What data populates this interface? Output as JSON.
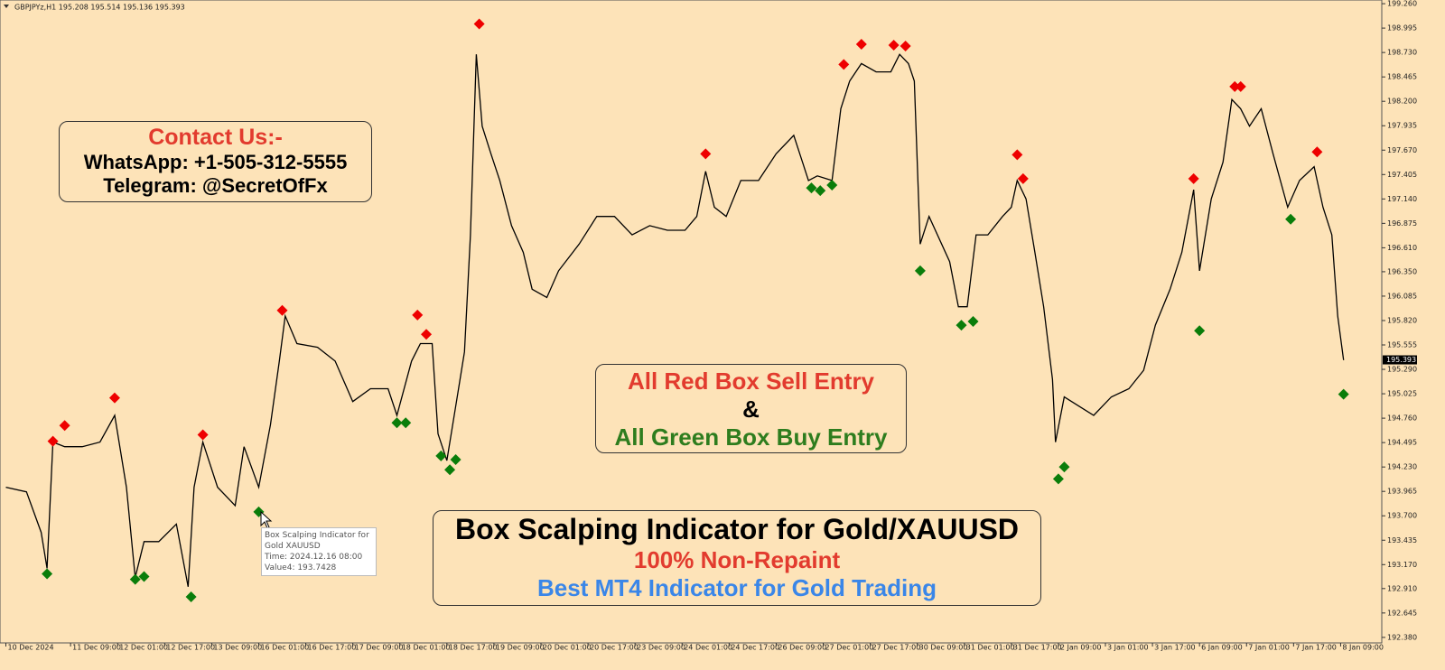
{
  "chart_data": {
    "type": "line",
    "header": "GBPJPYz,H1  195.208 195.514 195.136 195.393",
    "color": "#000000",
    "x": [
      0,
      7,
      12,
      14,
      16,
      20,
      26,
      32,
      37,
      41,
      44,
      47,
      52,
      58,
      62,
      64,
      67,
      72,
      78,
      81,
      86,
      90,
      93,
      95,
      99,
      106,
      112,
      118,
      124,
      130,
      133,
      138,
      141,
      145,
      147,
      150,
      153,
      156,
      158,
      160,
      162,
      165,
      168,
      172,
      176,
      179,
      184,
      188,
      195,
      201,
      207,
      213,
      219,
      225,
      231,
      235,
      238,
      241,
      245,
      250,
      256,
      262,
      268,
      273,
      276,
      281,
      284,
      287,
      291,
      296,
      301,
      304,
      307,
      309,
      311,
      314,
      321,
      324,
      327,
      330,
      334,
      339,
      342,
      344,
      347,
      350,
      353,
      356,
      357,
      360,
      365,
      370,
      376,
      382,
      387,
      391,
      396,
      400,
      404,
      406,
      410,
      414,
      417,
      420,
      423,
      427,
      431,
      436,
      440,
      445,
      448,
      451,
      453,
      455
    ],
    "values": [
      194.01,
      193.96,
      193.52,
      193.13,
      194.5,
      194.45,
      194.45,
      194.5,
      194.79,
      194.01,
      193.03,
      193.42,
      193.42,
      193.61,
      192.93,
      194.01,
      194.5,
      194.01,
      193.81,
      194.45,
      194.01,
      194.69,
      195.38,
      195.87,
      195.57,
      195.53,
      195.38,
      194.94,
      195.08,
      195.08,
      194.79,
      195.38,
      195.57,
      195.57,
      194.59,
      194.3,
      194.89,
      195.48,
      196.75,
      198.71,
      197.93,
      197.63,
      197.34,
      196.85,
      196.56,
      196.16,
      196.07,
      196.36,
      196.65,
      196.95,
      196.95,
      196.75,
      196.85,
      196.8,
      196.8,
      196.95,
      197.44,
      197.05,
      196.95,
      197.34,
      197.34,
      197.63,
      197.83,
      197.34,
      197.39,
      197.34,
      198.12,
      198.42,
      198.61,
      198.52,
      198.52,
      198.71,
      198.61,
      198.42,
      196.65,
      196.95,
      196.46,
      195.97,
      195.97,
      196.75,
      196.75,
      196.95,
      197.05,
      197.34,
      197.14,
      196.56,
      195.97,
      195.18,
      194.5,
      194.99,
      194.89,
      194.79,
      194.99,
      195.08,
      195.28,
      195.77,
      196.16,
      196.56,
      197.24,
      196.36,
      197.14,
      197.54,
      198.22,
      198.12,
      197.93,
      198.12,
      197.63,
      197.05,
      197.34,
      197.49,
      197.05,
      196.75,
      195.87,
      195.39
    ],
    "signals": {
      "sell": {
        "color": "#ee0000",
        "x": [
          16,
          20,
          37,
          67,
          94,
          140,
          143,
          161,
          238,
          285,
          291,
          302,
          306,
          344,
          346,
          404,
          418,
          420,
          446
        ],
        "values": [
          194.51,
          194.68,
          194.98,
          194.58,
          195.93,
          195.88,
          195.67,
          199.04,
          197.63,
          198.6,
          198.82,
          198.81,
          198.8,
          197.62,
          197.36,
          197.36,
          198.36,
          198.36,
          197.65
        ]
      },
      "buy": {
        "color": "#0a7d0a",
        "x": [
          14,
          44,
          47,
          63,
          86,
          133,
          136,
          148,
          151,
          153,
          274,
          277,
          281,
          311,
          325,
          329,
          358,
          360,
          406,
          437,
          455
        ],
        "values": [
          193.07,
          193.01,
          193.04,
          192.82,
          193.7428,
          194.71,
          194.71,
          194.35,
          194.2,
          194.31,
          197.26,
          197.23,
          197.29,
          196.36,
          195.77,
          195.81,
          194.1,
          194.23,
          195.71,
          196.92,
          195.02
        ]
      }
    },
    "current_price": 195.393,
    "ylim": [
      192.32,
      199.3
    ],
    "yticks": [
      {
        "value": 199.26,
        "label": "199.260"
      },
      198.995,
      {
        "value": 198.73,
        "label": "198.730"
      },
      198.465,
      {
        "value": 198.2,
        "label": "198.200"
      },
      197.935,
      {
        "value": 197.67,
        "label": "197.670"
      },
      197.405,
      {
        "value": 197.14,
        "label": "197.140"
      },
      196.875,
      {
        "value": 196.61,
        "label": "196.610"
      },
      {
        "value": 196.35,
        "label": "196.350"
      },
      196.085,
      {
        "value": 195.82,
        "label": "195.820"
      },
      195.555,
      {
        "value": 195.29,
        "label": "195.290"
      },
      195.025,
      {
        "value": 194.76,
        "label": "194.760"
      },
      194.495,
      {
        "value": 194.23,
        "label": "194.230"
      },
      193.965,
      {
        "value": 193.7,
        "label": "193.700"
      },
      193.435,
      {
        "value": 193.17,
        "label": "193.170"
      },
      {
        "value": 192.91,
        "label": "192.910"
      },
      192.645,
      {
        "value": 192.38,
        "label": "192.380"
      }
    ],
    "xlim": [
      -2,
      468
    ],
    "xticks": [
      {
        "value": 0,
        "label": "10 Dec 2024"
      },
      {
        "value": 22,
        "label": "11 Dec 09:00"
      },
      {
        "value": 38,
        "label": "12 Dec 01:00"
      },
      {
        "value": 54,
        "label": "12 Dec 17:00"
      },
      {
        "value": 70,
        "label": "13 Dec 09:00"
      },
      {
        "value": 86,
        "label": "16 Dec 01:00"
      },
      {
        "value": 102,
        "label": "16 Dec 17:00"
      },
      {
        "value": 118,
        "label": "17 Dec 09:00"
      },
      {
        "value": 134,
        "label": "18 Dec 01:00"
      },
      {
        "value": 150,
        "label": "18 Dec 17:00"
      },
      {
        "value": 166,
        "label": "19 Dec 09:00"
      },
      {
        "value": 182,
        "label": "20 Dec 01:00"
      },
      {
        "value": 198,
        "label": "20 Dec 17:00"
      },
      {
        "value": 214,
        "label": "23 Dec 09:00"
      },
      {
        "value": 230,
        "label": "24 Dec 01:00"
      },
      {
        "value": 246,
        "label": "24 Dec 17:00"
      },
      {
        "value": 262,
        "label": "26 Dec 09:00"
      },
      {
        "value": 278,
        "label": "27 Dec 01:00"
      },
      {
        "value": 294,
        "label": "27 Dec 17:00"
      },
      {
        "value": 310,
        "label": "30 Dec 09:00"
      },
      {
        "value": 326,
        "label": "31 Dec 01:00"
      },
      {
        "value": 342,
        "label": "31 Dec 17:00"
      },
      {
        "value": 358,
        "label": "2 Jan 09:00"
      },
      {
        "value": 374,
        "label": "3 Jan 01:00"
      },
      {
        "value": 390,
        "label": "3 Jan 17:00"
      },
      {
        "value": 406,
        "label": "6 Jan 09:00"
      },
      {
        "value": 422,
        "label": "7 Jan 01:00"
      },
      {
        "value": 438,
        "label": "7 Jan 17:00"
      },
      {
        "value": 454,
        "label": "8 Jan 09:00"
      }
    ],
    "grid": false,
    "tooltip": {
      "lines": [
        "Box Scalping Indicator for Gold  XAUUSD",
        "Time: 2024.12.16 08:00",
        "Value4: 193.7428"
      ]
    },
    "annotations": {
      "contact": [
        "Contact Us:-",
        "WhatsApp: +1-505-312-5555",
        "Telegram: @SecretOfFx"
      ],
      "entries": [
        "All Red Box Sell Entry",
        "&",
        "All Green Box Buy Entry"
      ],
      "product": [
        "Box Scalping Indicator for Gold/XAUUSD",
        "100% Non-Repaint",
        "Best MT4 Indicator for Gold Trading"
      ]
    }
  }
}
